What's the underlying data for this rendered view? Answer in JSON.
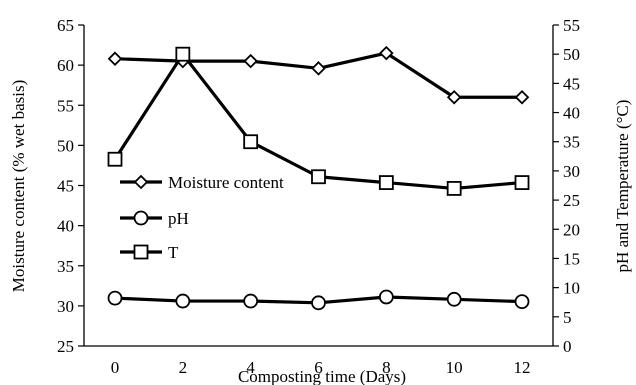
{
  "chart_data": {
    "type": "line",
    "x": [
      0,
      2,
      4,
      6,
      8,
      10,
      12
    ],
    "xlabel": "Composting time (Days)",
    "ylabel_left": "Moisture content (% wet basis)",
    "ylabel_right": "pH and Temperature (°C)",
    "ylim_left": [
      25,
      65
    ],
    "ylim_right": [
      0,
      55
    ],
    "yticks_left": [
      25,
      30,
      35,
      40,
      45,
      50,
      55,
      60,
      65
    ],
    "yticks_right": [
      0,
      5,
      10,
      15,
      20,
      25,
      30,
      35,
      40,
      45,
      50,
      55
    ],
    "grid": false,
    "legend_position": "center-left",
    "series": [
      {
        "name": "Moisture content",
        "axis": "left",
        "marker": "diamond",
        "values": [
          60.8,
          60.5,
          60.5,
          59.6,
          61.5,
          56.0,
          56.0
        ]
      },
      {
        "name": "pH",
        "axis": "right",
        "marker": "circle",
        "values": [
          8.2,
          7.7,
          7.7,
          7.4,
          8.4,
          8.0,
          7.6
        ]
      },
      {
        "name": "T",
        "axis": "right",
        "marker": "square",
        "values": [
          32.0,
          50.0,
          35.0,
          29.0,
          28.0,
          27.0,
          28.0
        ]
      }
    ],
    "colors": {
      "line": "#000000",
      "marker_fill": "#ffffff"
    }
  }
}
